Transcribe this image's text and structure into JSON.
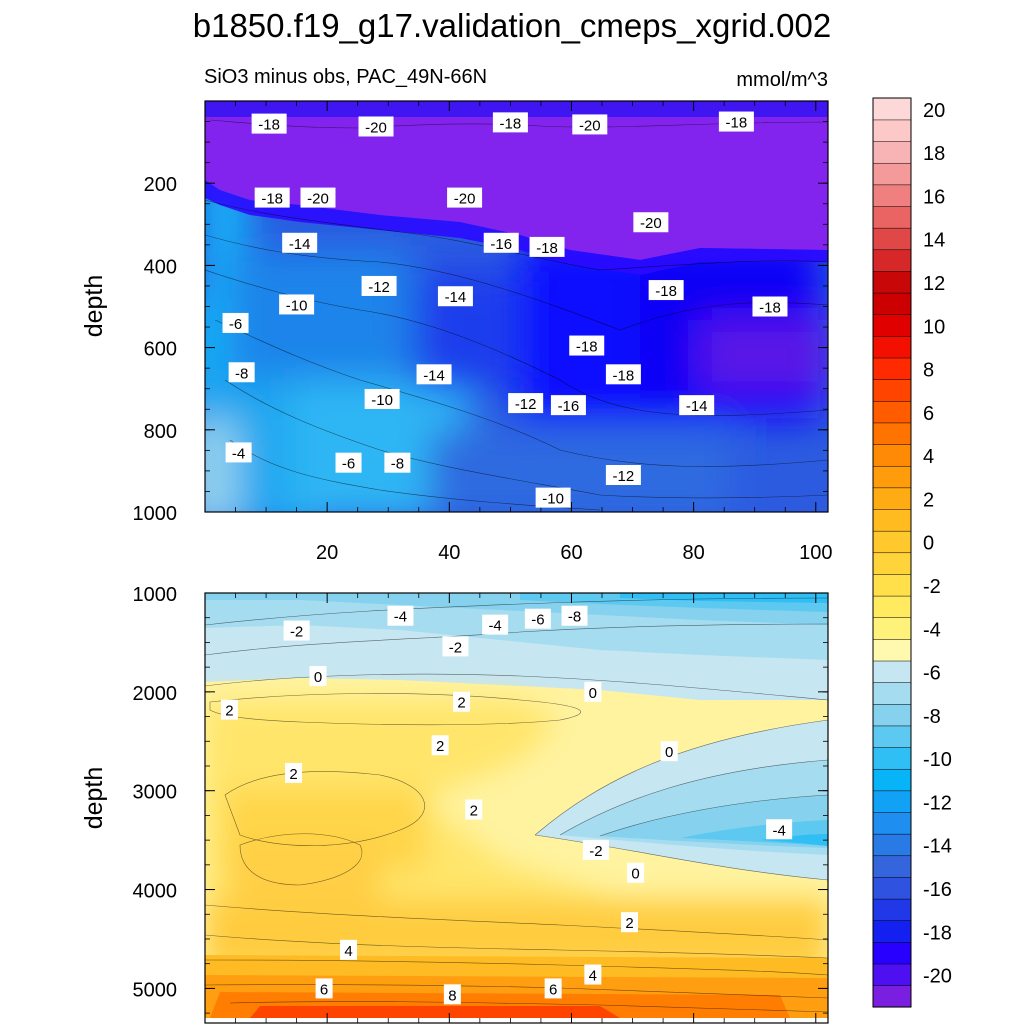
{
  "chart_data": {
    "type": "heatmap",
    "title": "b1850.f19_g17.validation_cmeps_xgrid.002",
    "subtitle": "SiO3 minus obs, PAC_49N-66N",
    "units": "mmol/m^3",
    "colorbar": {
      "min": -21,
      "max": 21,
      "step": 1,
      "tick_labels": [
        "20",
        "18",
        "16",
        "14",
        "12",
        "10",
        "8",
        "6",
        "4",
        "2",
        "0",
        "-2",
        "-4",
        "-6",
        "-8",
        "-10",
        "-12",
        "-14",
        "-16",
        "-18",
        "-20"
      ],
      "colors": [
        "#7a1fdf",
        "#4e10f0",
        "#2800ff",
        "#1420f0",
        "#2038e8",
        "#2f52e0",
        "#3565dc",
        "#2a7ae6",
        "#1e8ef0",
        "#12a2f5",
        "#08b4f8",
        "#30bff5",
        "#5ec9f0",
        "#86d2ee",
        "#a6dcef",
        "#c6e6f2",
        "#fff9b0",
        "#fff27a",
        "#ffea60",
        "#ffdf4a",
        "#ffd43a",
        "#ffc82c",
        "#ffbb20",
        "#ffac14",
        "#ff9c0c",
        "#ff8a06",
        "#ff7400",
        "#ff5c00",
        "#ff4400",
        "#ff2a00",
        "#f41000",
        "#e00000",
        "#cc0000",
        "#c80808",
        "#d62828",
        "#e04848",
        "#ea6464",
        "#f08080",
        "#f49a9a",
        "#f8b4b4",
        "#fcc8c8",
        "#fdd8d8"
      ]
    },
    "panels": [
      {
        "name": "upper",
        "ylabel": "depth",
        "ylim": [
          0,
          1000
        ],
        "xlim": [
          0,
          102
        ],
        "y_ticks": [
          "200",
          "400",
          "600",
          "800",
          "1000"
        ],
        "x_ticks": [
          "20",
          "40",
          "60",
          "80",
          "100"
        ],
        "contour_labels": [
          {
            "text": "-18",
            "x": 10.5,
            "y": 55
          },
          {
            "text": "-20",
            "x": 28,
            "y": 62
          },
          {
            "text": "-18",
            "x": 50,
            "y": 52
          },
          {
            "text": "-20",
            "x": 63,
            "y": 57
          },
          {
            "text": "-18",
            "x": 87,
            "y": 50
          },
          {
            "text": "-18",
            "x": 11,
            "y": 235
          },
          {
            "text": "-20",
            "x": 18.5,
            "y": 235
          },
          {
            "text": "-20",
            "x": 42.5,
            "y": 235
          },
          {
            "text": "-20",
            "x": 73,
            "y": 295
          },
          {
            "text": "-14",
            "x": 15.5,
            "y": 345
          },
          {
            "text": "-16",
            "x": 48.5,
            "y": 345
          },
          {
            "text": "-18",
            "x": 56,
            "y": 355
          },
          {
            "text": "-18",
            "x": 75.5,
            "y": 460
          },
          {
            "text": "-12",
            "x": 28.5,
            "y": 450
          },
          {
            "text": "-14",
            "x": 41,
            "y": 475
          },
          {
            "text": "-10",
            "x": 15,
            "y": 495
          },
          {
            "text": "-6",
            "x": 5,
            "y": 540
          },
          {
            "text": "-18",
            "x": 92.5,
            "y": 500
          },
          {
            "text": "-18",
            "x": 62.5,
            "y": 595
          },
          {
            "text": "-8",
            "x": 6,
            "y": 660
          },
          {
            "text": "-14",
            "x": 37.5,
            "y": 665
          },
          {
            "text": "-18",
            "x": 68.5,
            "y": 665
          },
          {
            "text": "-10",
            "x": 29,
            "y": 725
          },
          {
            "text": "-12",
            "x": 52.5,
            "y": 735
          },
          {
            "text": "-16",
            "x": 59.5,
            "y": 740
          },
          {
            "text": "-14",
            "x": 80.5,
            "y": 740
          },
          {
            "text": "-4",
            "x": 5.5,
            "y": 855
          },
          {
            "text": "-6",
            "x": 23.5,
            "y": 880
          },
          {
            "text": "-8",
            "x": 31.5,
            "y": 880
          },
          {
            "text": "-12",
            "x": 68.5,
            "y": 910
          },
          {
            "text": "-10",
            "x": 57,
            "y": 965
          }
        ]
      },
      {
        "name": "lower",
        "ylabel": "depth",
        "ylim": [
          1000,
          5350
        ],
        "xlim": [
          0,
          102
        ],
        "y_ticks": [
          "1000",
          "2000",
          "3000",
          "4000",
          "5000"
        ],
        "x_ticks": [],
        "contour_labels": [
          {
            "text": "-4",
            "x": 32,
            "y": 1230
          },
          {
            "text": "-2",
            "x": 15,
            "y": 1380
          },
          {
            "text": "-2",
            "x": 41,
            "y": 1540
          },
          {
            "text": "-4",
            "x": 47.5,
            "y": 1320
          },
          {
            "text": "-6",
            "x": 54.5,
            "y": 1260
          },
          {
            "text": "-8",
            "x": 60.5,
            "y": 1230
          },
          {
            "text": "0",
            "x": 18.5,
            "y": 1840
          },
          {
            "text": "2",
            "x": 42,
            "y": 2100
          },
          {
            "text": "0",
            "x": 63.5,
            "y": 2000
          },
          {
            "text": "2",
            "x": 4,
            "y": 2180
          },
          {
            "text": "2",
            "x": 38.5,
            "y": 2540
          },
          {
            "text": "0",
            "x": 76,
            "y": 2600
          },
          {
            "text": "2",
            "x": 14.5,
            "y": 2820
          },
          {
            "text": "2",
            "x": 44,
            "y": 3190
          },
          {
            "text": "-4",
            "x": 94,
            "y": 3390
          },
          {
            "text": "-2",
            "x": 64,
            "y": 3600
          },
          {
            "text": "0",
            "x": 70.5,
            "y": 3830
          },
          {
            "text": "2",
            "x": 69.5,
            "y": 4330
          },
          {
            "text": "4",
            "x": 23.5,
            "y": 4610
          },
          {
            "text": "4",
            "x": 63.5,
            "y": 4860
          },
          {
            "text": "6",
            "x": 19.5,
            "y": 5000
          },
          {
            "text": "6",
            "x": 57,
            "y": 5000
          },
          {
            "text": "8",
            "x": 40.5,
            "y": 5060
          }
        ]
      }
    ]
  }
}
